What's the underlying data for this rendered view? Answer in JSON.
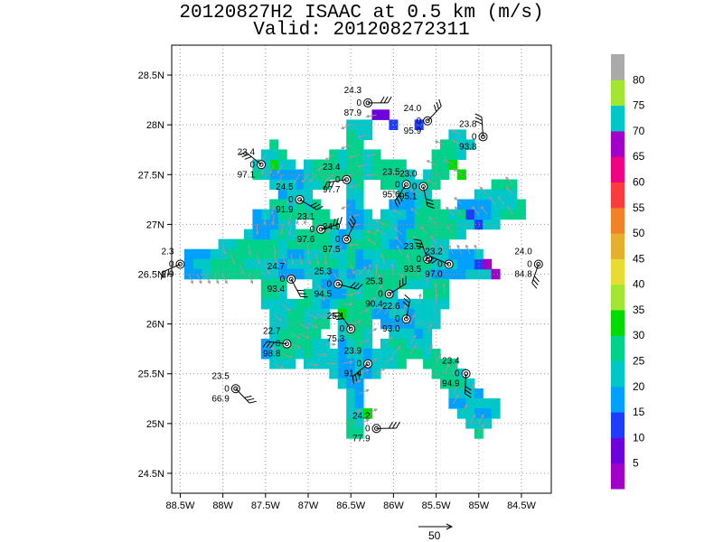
{
  "title": {
    "line1": "20120827H2 ISAAC at 0.5 km (m/s)",
    "line2": "Valid: 201208272311"
  },
  "chart_data": {
    "type": "heatmap",
    "lon_range": [
      -88.6,
      -84.15
    ],
    "lat_range": [
      24.3,
      28.8
    ],
    "x_ticks": [
      -88.5,
      -88,
      -87.5,
      -87,
      -86.5,
      -86,
      -85.5,
      -85,
      -84.5
    ],
    "x_tick_labels": [
      "88.5W",
      "88W",
      "87.5W",
      "87W",
      "86.5W",
      "86W",
      "85.5W",
      "85W",
      "84.5W"
    ],
    "y_ticks": [
      24.5,
      25,
      25.5,
      26,
      26.5,
      27,
      27.5,
      28,
      28.5
    ],
    "y_tick_labels": [
      "24.5N",
      "25N",
      "25.5N",
      "26N",
      "26.5N",
      "27N",
      "27.5N",
      "28N",
      "28.5N"
    ],
    "grid": true,
    "center": {
      "lon": -86.45,
      "lat": 26.6
    },
    "colorbar": {
      "labels": [
        "5",
        "10",
        "15",
        "20",
        "25",
        "30",
        "35",
        "40",
        "45",
        "50",
        "55",
        "60",
        "65",
        "70",
        "75",
        "80"
      ],
      "colors": [
        "#a000c8",
        "#6e00dc",
        "#1e3cff",
        "#00a0ff",
        "#00c8c8",
        "#00d28c",
        "#00dc00",
        "#a0e632",
        "#e6dc32",
        "#e6af2d",
        "#f08228",
        "#fa3c3c",
        "#f00082",
        "#a000c8",
        "#00c8c8",
        "#a0e632",
        "#aaaaaa"
      ]
    },
    "vector_scale": {
      "label": "50"
    },
    "stations": [
      {
        "lon": -86.3,
        "lat": 28.22,
        "top": "24.3",
        "mid": "0",
        "bottom": "87.9"
      },
      {
        "lon": -85.6,
        "lat": 28.04,
        "top": "24.0",
        "mid": "0",
        "bottom": "95.9"
      },
      {
        "lon": -84.95,
        "lat": 27.88,
        "top": "23.8",
        "mid": "0",
        "bottom": "93.8"
      },
      {
        "lon": -87.55,
        "lat": 27.6,
        "top": "23.4",
        "mid": "0",
        "bottom": "97.1"
      },
      {
        "lon": -86.55,
        "lat": 27.45,
        "top": "23.4",
        "mid": "0",
        "bottom": "97.7"
      },
      {
        "lon": -85.85,
        "lat": 27.4,
        "top": "23.5",
        "mid": "0",
        "bottom": "95.6"
      },
      {
        "lon": -85.65,
        "lat": 27.38,
        "top": "23.0",
        "mid": "0",
        "bottom": "95.1"
      },
      {
        "lon": -87.1,
        "lat": 27.25,
        "top": "24.5",
        "mid": "0",
        "bottom": "91.9"
      },
      {
        "lon": -86.85,
        "lat": 26.95,
        "top": "23.1",
        "mid": "0",
        "bottom": "97.6"
      },
      {
        "lon": -86.55,
        "lat": 26.85,
        "top": "24.9",
        "mid": "0",
        "bottom": "97.5"
      },
      {
        "lon": -85.6,
        "lat": 26.65,
        "top": "23.9",
        "mid": "0",
        "bottom": "93.5"
      },
      {
        "lon": -85.35,
        "lat": 26.6,
        "top": "23.2",
        "mid": "0",
        "bottom": "97.0"
      },
      {
        "lon": -88.5,
        "lat": 26.6,
        "top": "2.3",
        "mid": "0",
        "bottom": "2.9"
      },
      {
        "lon": -84.3,
        "lat": 26.6,
        "top": "24.0",
        "mid": "0",
        "bottom": "84.8"
      },
      {
        "lon": -87.2,
        "lat": 26.45,
        "top": "24.7",
        "mid": "0",
        "bottom": "93.4"
      },
      {
        "lon": -86.65,
        "lat": 26.4,
        "top": "25.3",
        "mid": "0",
        "bottom": "94.5"
      },
      {
        "lon": -86.05,
        "lat": 26.3,
        "top": "25.3",
        "mid": "0",
        "bottom": "90.4"
      },
      {
        "lon": -85.85,
        "lat": 26.05,
        "top": "22.6",
        "mid": "0",
        "bottom": "93.0"
      },
      {
        "lon": -86.5,
        "lat": 25.95,
        "top": "25.1",
        "mid": "0",
        "bottom": "75.3"
      },
      {
        "lon": -87.25,
        "lat": 25.8,
        "top": "22.7",
        "mid": "0",
        "bottom": "98.8"
      },
      {
        "lon": -86.3,
        "lat": 25.6,
        "top": "23.9",
        "mid": "0",
        "bottom": "91.4"
      },
      {
        "lon": -85.15,
        "lat": 25.5,
        "top": "23.4",
        "mid": "0",
        "bottom": "94.9"
      },
      {
        "lon": -87.85,
        "lat": 25.35,
        "top": "23.5",
        "mid": "0",
        "bottom": "66.9"
      },
      {
        "lon": -86.2,
        "lat": 24.95,
        "top": "24.2",
        "mid": "0",
        "bottom": "77.9"
      }
    ]
  }
}
